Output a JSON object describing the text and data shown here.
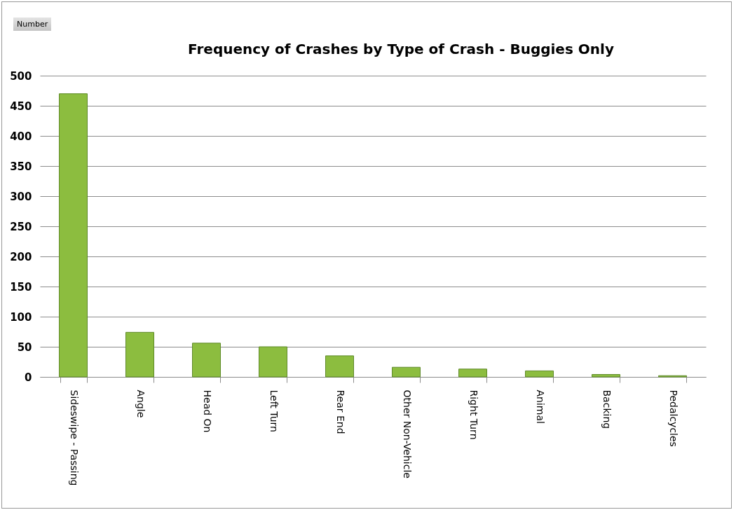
{
  "chart_data": {
    "type": "bar",
    "title": "Frequency of Crashes by Type of Crash - Buggies Only",
    "categories": [
      "Sideswipe - Passing",
      "Angle",
      "Head On",
      "Left Turn",
      "Rear End",
      "Other Non-Vehicle",
      "Right Turn",
      "Animal",
      "Backing",
      "Pedalcycles"
    ],
    "values": [
      470,
      74,
      56,
      50,
      35,
      16,
      13,
      10,
      4,
      2
    ],
    "color": "#8cbd3f",
    "ylim": [
      0,
      500
    ],
    "yticks": [
      0,
      50,
      100,
      150,
      200,
      250,
      300,
      350,
      400,
      450,
      500
    ],
    "grid": "y",
    "annotations": [
      "Number"
    ]
  }
}
